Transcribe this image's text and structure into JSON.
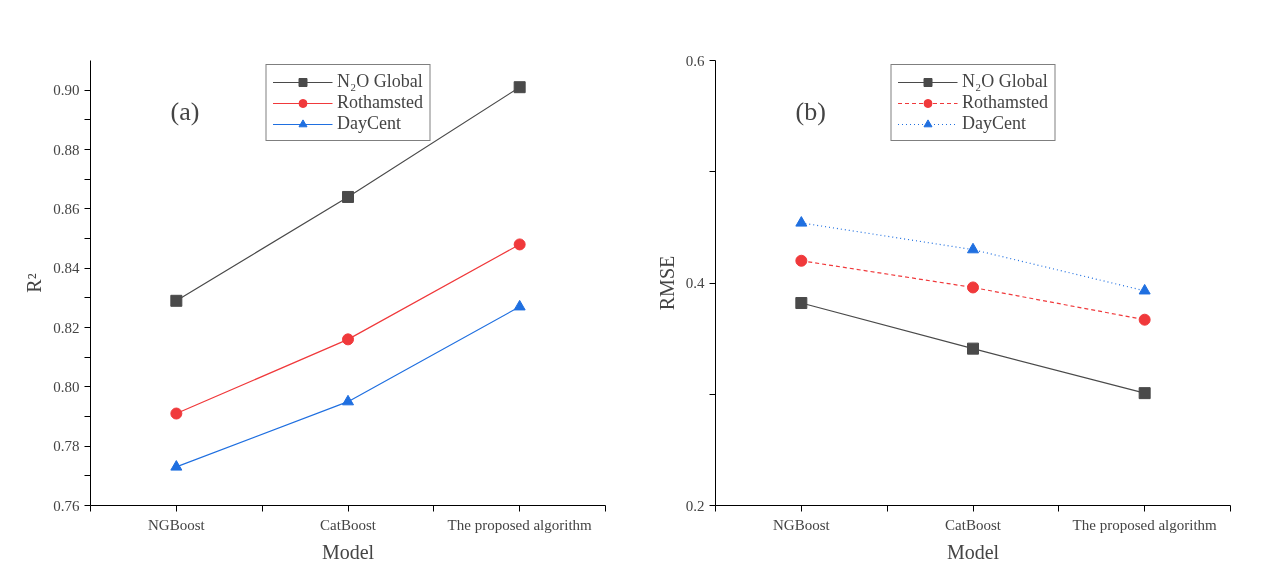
{
  "chart_data": [
    {
      "type": "line",
      "xlabel": "Model",
      "ylabel": "R²",
      "annotations": [
        "(a)"
      ],
      "categories": [
        "NGBoost",
        "CatBoost",
        "The proposed algorithm"
      ],
      "series": [
        {
          "name": "N₂O Global",
          "color": "#4a4a4a",
          "marker": "square",
          "line_style": "solid",
          "values": [
            0.829,
            0.864,
            0.901
          ]
        },
        {
          "name": "Rothamsted",
          "color": "#f0393b",
          "marker": "circle",
          "line_style": "solid",
          "values": [
            0.791,
            0.816,
            0.848
          ]
        },
        {
          "name": "DayCent",
          "color": "#1f6fe0",
          "marker": "triangle",
          "line_style": "solid",
          "values": [
            0.773,
            0.795,
            0.827
          ]
        }
      ],
      "ylim": [
        0.76,
        0.91
      ],
      "yticks": [
        {
          "value": 0.76,
          "label": "0.76"
        },
        {
          "value": 0.77,
          "label": null
        },
        {
          "value": 0.78,
          "label": "0.78"
        },
        {
          "value": 0.79,
          "label": null
        },
        {
          "value": 0.8,
          "label": "0.80"
        },
        {
          "value": 0.81,
          "label": null
        },
        {
          "value": 0.82,
          "label": "0.82"
        },
        {
          "value": 0.83,
          "label": null
        },
        {
          "value": 0.84,
          "label": "0.84"
        },
        {
          "value": 0.85,
          "label": null
        },
        {
          "value": 0.86,
          "label": "0.86"
        },
        {
          "value": 0.87,
          "label": null
        },
        {
          "value": 0.88,
          "label": "0.88"
        },
        {
          "value": 0.89,
          "label": null
        },
        {
          "value": 0.9,
          "label": "0.90"
        }
      ],
      "grid": false,
      "legend": "top"
    },
    {
      "type": "line",
      "xlabel": "Model",
      "ylabel": "RMSE",
      "annotations": [
        "(b)"
      ],
      "categories": [
        "NGBoost",
        "CatBoost",
        "The proposed algorithm"
      ],
      "series": [
        {
          "name": "N₂O Global",
          "color": "#4a4a4a",
          "marker": "square",
          "line_style": "solid",
          "values": [
            0.382,
            0.341,
            0.301
          ]
        },
        {
          "name": "Rothamsted",
          "color": "#f0393b",
          "marker": "circle",
          "line_style": "dashed",
          "values": [
            0.42,
            0.396,
            0.367
          ]
        },
        {
          "name": "DayCent",
          "color": "#1f6fe0",
          "marker": "triangle",
          "line_style": "dotted",
          "values": [
            0.454,
            0.43,
            0.393
          ]
        }
      ],
      "ylim": [
        0.2,
        0.6
      ],
      "yticks": [
        0.2,
        {
          "value": 0.3,
          "label": null
        },
        0.4,
        {
          "value": 0.5,
          "label": null
        },
        0.6
      ],
      "grid": false,
      "legend": "top"
    }
  ]
}
